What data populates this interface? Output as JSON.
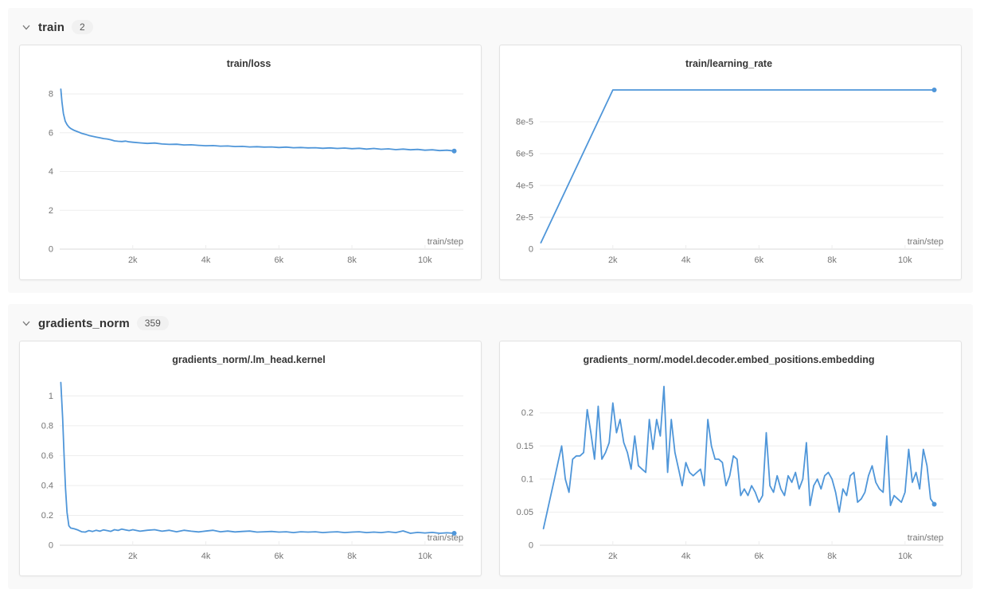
{
  "colors": {
    "line": "#4f96d9",
    "grid": "#ededed",
    "axis": "#d9d9d9",
    "tick_label": "#757575",
    "title": "#363636",
    "section_bg": "#f9f9f9"
  },
  "sections": [
    {
      "label": "train",
      "badge": "2",
      "state": "expanded"
    },
    {
      "label": "gradients_norm",
      "badge": "359",
      "state": "expanded"
    }
  ],
  "chart_data": [
    {
      "type": "line",
      "title": "train/loss",
      "xlabel": "train/step",
      "xlim": [
        0,
        11050
      ],
      "ylim": [
        0,
        8.7
      ],
      "xticks": [
        2000,
        4000,
        6000,
        8000,
        10000
      ],
      "xtick_labels": [
        "2k",
        "4k",
        "6k",
        "8k",
        "10k"
      ],
      "yticks": [
        0,
        2,
        4,
        6,
        8
      ],
      "ytick_labels": [
        "0",
        "2",
        "4",
        "6",
        "8"
      ],
      "grid": true,
      "end_marker": true,
      "points": [
        [
          30,
          8.25
        ],
        [
          60,
          7.6
        ],
        [
          100,
          7.0
        ],
        [
          150,
          6.6
        ],
        [
          200,
          6.42
        ],
        [
          250,
          6.3
        ],
        [
          300,
          6.22
        ],
        [
          400,
          6.12
        ],
        [
          500,
          6.05
        ],
        [
          600,
          5.97
        ],
        [
          700,
          5.92
        ],
        [
          800,
          5.86
        ],
        [
          900,
          5.82
        ],
        [
          1000,
          5.78
        ],
        [
          1100,
          5.74
        ],
        [
          1200,
          5.7
        ],
        [
          1300,
          5.68
        ],
        [
          1400,
          5.64
        ],
        [
          1500,
          5.58
        ],
        [
          1600,
          5.56
        ],
        [
          1700,
          5.55
        ],
        [
          1800,
          5.57
        ],
        [
          1900,
          5.53
        ],
        [
          2000,
          5.51
        ],
        [
          2200,
          5.48
        ],
        [
          2400,
          5.45
        ],
        [
          2600,
          5.47
        ],
        [
          2800,
          5.42
        ],
        [
          3000,
          5.4
        ],
        [
          3200,
          5.41
        ],
        [
          3400,
          5.37
        ],
        [
          3600,
          5.38
        ],
        [
          3800,
          5.35
        ],
        [
          4000,
          5.33
        ],
        [
          4200,
          5.34
        ],
        [
          4400,
          5.31
        ],
        [
          4600,
          5.32
        ],
        [
          4800,
          5.29
        ],
        [
          5000,
          5.3
        ],
        [
          5200,
          5.27
        ],
        [
          5400,
          5.28
        ],
        [
          5600,
          5.26
        ],
        [
          5800,
          5.27
        ],
        [
          6000,
          5.24
        ],
        [
          6200,
          5.26
        ],
        [
          6400,
          5.23
        ],
        [
          6600,
          5.24
        ],
        [
          6800,
          5.22
        ],
        [
          7000,
          5.23
        ],
        [
          7200,
          5.2
        ],
        [
          7400,
          5.22
        ],
        [
          7600,
          5.19
        ],
        [
          7800,
          5.21
        ],
        [
          8000,
          5.18
        ],
        [
          8200,
          5.2
        ],
        [
          8400,
          5.16
        ],
        [
          8600,
          5.19
        ],
        [
          8800,
          5.15
        ],
        [
          9000,
          5.17
        ],
        [
          9200,
          5.13
        ],
        [
          9400,
          5.16
        ],
        [
          9600,
          5.12
        ],
        [
          9800,
          5.14
        ],
        [
          10000,
          5.1
        ],
        [
          10200,
          5.12
        ],
        [
          10400,
          5.08
        ],
        [
          10600,
          5.1
        ],
        [
          10800,
          5.06
        ]
      ]
    },
    {
      "type": "line",
      "title": "train/learning_rate",
      "xlabel": "train/step",
      "xlim": [
        0,
        11050
      ],
      "ylim": [
        0,
        0.000106
      ],
      "xticks": [
        2000,
        4000,
        6000,
        8000,
        10000
      ],
      "xtick_labels": [
        "2k",
        "4k",
        "6k",
        "8k",
        "10k"
      ],
      "yticks": [
        0,
        2e-05,
        4e-05,
        6e-05,
        8e-05
      ],
      "ytick_labels": [
        "0",
        "2e-5",
        "4e-5",
        "6e-5",
        "8e-5"
      ],
      "grid": true,
      "end_marker": true,
      "points": [
        [
          30,
          4e-06
        ],
        [
          2000,
          0.0001
        ],
        [
          10800,
          0.0001
        ]
      ]
    },
    {
      "type": "line",
      "title": "gradients_norm/.lm_head.kernel",
      "xlabel": "train/step",
      "xlim": [
        0,
        11050
      ],
      "ylim": [
        0,
        1.13
      ],
      "xticks": [
        2000,
        4000,
        6000,
        8000,
        10000
      ],
      "xtick_labels": [
        "2k",
        "4k",
        "6k",
        "8k",
        "10k"
      ],
      "yticks": [
        0,
        0.2,
        0.4,
        0.6,
        0.8,
        1
      ],
      "ytick_labels": [
        "0",
        "0.2",
        "0.4",
        "0.6",
        "0.8",
        "1"
      ],
      "grid": true,
      "end_marker": true,
      "points": [
        [
          30,
          1.09
        ],
        [
          80,
          0.85
        ],
        [
          120,
          0.6
        ],
        [
          160,
          0.38
        ],
        [
          200,
          0.22
        ],
        [
          250,
          0.13
        ],
        [
          300,
          0.115
        ],
        [
          400,
          0.11
        ],
        [
          500,
          0.102
        ],
        [
          600,
          0.09
        ],
        [
          700,
          0.088
        ],
        [
          800,
          0.098
        ],
        [
          900,
          0.092
        ],
        [
          1000,
          0.1
        ],
        [
          1100,
          0.094
        ],
        [
          1200,
          0.103
        ],
        [
          1300,
          0.098
        ],
        [
          1400,
          0.093
        ],
        [
          1500,
          0.104
        ],
        [
          1600,
          0.099
        ],
        [
          1700,
          0.108
        ],
        [
          1800,
          0.103
        ],
        [
          1900,
          0.098
        ],
        [
          2000,
          0.104
        ],
        [
          2200,
          0.094
        ],
        [
          2400,
          0.1
        ],
        [
          2600,
          0.104
        ],
        [
          2800,
          0.094
        ],
        [
          3000,
          0.1
        ],
        [
          3200,
          0.09
        ],
        [
          3400,
          0.1
        ],
        [
          3600,
          0.094
        ],
        [
          3800,
          0.089
        ],
        [
          4000,
          0.095
        ],
        [
          4200,
          0.1
        ],
        [
          4400,
          0.09
        ],
        [
          4600,
          0.095
        ],
        [
          4800,
          0.089
        ],
        [
          5000,
          0.092
        ],
        [
          5200,
          0.095
        ],
        [
          5400,
          0.088
        ],
        [
          5600,
          0.09
        ],
        [
          5800,
          0.092
        ],
        [
          6000,
          0.088
        ],
        [
          6200,
          0.09
        ],
        [
          6400,
          0.085
        ],
        [
          6600,
          0.09
        ],
        [
          6800,
          0.088
        ],
        [
          7000,
          0.09
        ],
        [
          7200,
          0.085
        ],
        [
          7400,
          0.088
        ],
        [
          7600,
          0.09
        ],
        [
          7800,
          0.085
        ],
        [
          8000,
          0.088
        ],
        [
          8200,
          0.09
        ],
        [
          8400,
          0.085
        ],
        [
          8600,
          0.088
        ],
        [
          8800,
          0.085
        ],
        [
          9000,
          0.09
        ],
        [
          9200,
          0.085
        ],
        [
          9400,
          0.096
        ],
        [
          9600,
          0.08
        ],
        [
          9800,
          0.086
        ],
        [
          10000,
          0.082
        ],
        [
          10200,
          0.086
        ],
        [
          10400,
          0.08
        ],
        [
          10600,
          0.083
        ],
        [
          10800,
          0.08
        ]
      ]
    },
    {
      "type": "line",
      "title": "gradients_norm/.model.decoder.embed_positions.embedding",
      "xlabel": "train/step",
      "xlim": [
        0,
        11050
      ],
      "ylim": [
        0,
        0.255
      ],
      "xticks": [
        2000,
        4000,
        6000,
        8000,
        10000
      ],
      "xtick_labels": [
        "2k",
        "4k",
        "6k",
        "8k",
        "10k"
      ],
      "yticks": [
        0,
        0.05,
        0.1,
        0.15,
        0.2
      ],
      "ytick_labels": [
        "0",
        "0.05",
        "0.1",
        "0.15",
        "0.2"
      ],
      "grid": true,
      "end_marker": true,
      "points": [
        [
          100,
          0.025
        ],
        [
          200,
          0.05
        ],
        [
          300,
          0.075
        ],
        [
          400,
          0.1
        ],
        [
          500,
          0.125
        ],
        [
          600,
          0.15
        ],
        [
          700,
          0.1
        ],
        [
          800,
          0.08
        ],
        [
          900,
          0.13
        ],
        [
          1000,
          0.135
        ],
        [
          1100,
          0.135
        ],
        [
          1200,
          0.14
        ],
        [
          1300,
          0.205
        ],
        [
          1400,
          0.17
        ],
        [
          1500,
          0.13
        ],
        [
          1600,
          0.21
        ],
        [
          1700,
          0.13
        ],
        [
          1800,
          0.14
        ],
        [
          1900,
          0.155
        ],
        [
          2000,
          0.215
        ],
        [
          2100,
          0.17
        ],
        [
          2200,
          0.19
        ],
        [
          2300,
          0.155
        ],
        [
          2400,
          0.14
        ],
        [
          2500,
          0.115
        ],
        [
          2600,
          0.165
        ],
        [
          2700,
          0.12
        ],
        [
          2800,
          0.115
        ],
        [
          2900,
          0.11
        ],
        [
          3000,
          0.19
        ],
        [
          3100,
          0.145
        ],
        [
          3200,
          0.19
        ],
        [
          3300,
          0.165
        ],
        [
          3400,
          0.24
        ],
        [
          3500,
          0.11
        ],
        [
          3600,
          0.19
        ],
        [
          3700,
          0.14
        ],
        [
          3800,
          0.115
        ],
        [
          3900,
          0.09
        ],
        [
          4000,
          0.125
        ],
        [
          4100,
          0.11
        ],
        [
          4200,
          0.105
        ],
        [
          4300,
          0.11
        ],
        [
          4400,
          0.115
        ],
        [
          4500,
          0.09
        ],
        [
          4600,
          0.19
        ],
        [
          4700,
          0.15
        ],
        [
          4800,
          0.13
        ],
        [
          4900,
          0.13
        ],
        [
          5000,
          0.125
        ],
        [
          5100,
          0.09
        ],
        [
          5200,
          0.105
        ],
        [
          5300,
          0.135
        ],
        [
          5400,
          0.13
        ],
        [
          5500,
          0.075
        ],
        [
          5600,
          0.085
        ],
        [
          5700,
          0.075
        ],
        [
          5800,
          0.09
        ],
        [
          5900,
          0.08
        ],
        [
          6000,
          0.065
        ],
        [
          6100,
          0.075
        ],
        [
          6200,
          0.17
        ],
        [
          6300,
          0.09
        ],
        [
          6400,
          0.08
        ],
        [
          6500,
          0.105
        ],
        [
          6600,
          0.085
        ],
        [
          6700,
          0.075
        ],
        [
          6800,
          0.105
        ],
        [
          6900,
          0.095
        ],
        [
          7000,
          0.11
        ],
        [
          7100,
          0.085
        ],
        [
          7200,
          0.1
        ],
        [
          7300,
          0.155
        ],
        [
          7400,
          0.06
        ],
        [
          7500,
          0.09
        ],
        [
          7600,
          0.1
        ],
        [
          7700,
          0.085
        ],
        [
          7800,
          0.105
        ],
        [
          7900,
          0.11
        ],
        [
          8000,
          0.1
        ],
        [
          8100,
          0.08
        ],
        [
          8200,
          0.05
        ],
        [
          8300,
          0.085
        ],
        [
          8400,
          0.075
        ],
        [
          8500,
          0.105
        ],
        [
          8600,
          0.11
        ],
        [
          8700,
          0.065
        ],
        [
          8800,
          0.07
        ],
        [
          8900,
          0.08
        ],
        [
          9000,
          0.105
        ],
        [
          9100,
          0.12
        ],
        [
          9200,
          0.095
        ],
        [
          9300,
          0.085
        ],
        [
          9400,
          0.08
        ],
        [
          9500,
          0.165
        ],
        [
          9600,
          0.06
        ],
        [
          9700,
          0.075
        ],
        [
          9800,
          0.07
        ],
        [
          9900,
          0.065
        ],
        [
          10000,
          0.08
        ],
        [
          10100,
          0.145
        ],
        [
          10200,
          0.095
        ],
        [
          10300,
          0.11
        ],
        [
          10400,
          0.085
        ],
        [
          10500,
          0.145
        ],
        [
          10600,
          0.12
        ],
        [
          10700,
          0.07
        ],
        [
          10800,
          0.062
        ]
      ]
    }
  ]
}
